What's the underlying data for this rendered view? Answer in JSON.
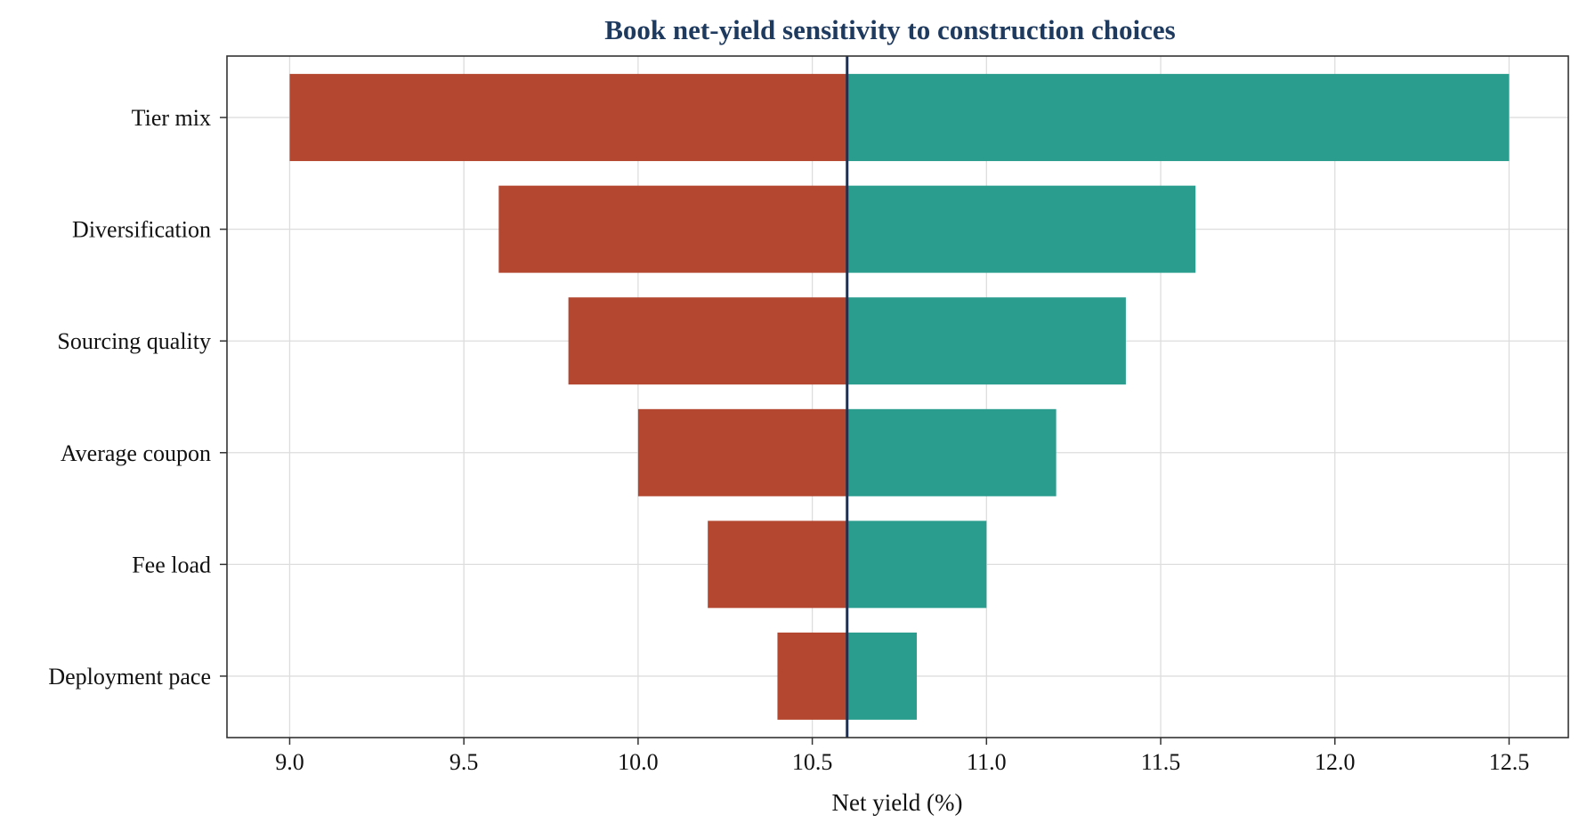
{
  "chart_data": {
    "type": "bar",
    "orientation": "horizontal",
    "title": "Book net-yield sensitivity to construction choices",
    "xlabel": "Net yield (%)",
    "ylabel": "",
    "xlim": [
      8.82,
      12.67
    ],
    "xticks": [
      9.0,
      9.5,
      10.0,
      10.5,
      11.0,
      11.5,
      12.0,
      12.5
    ],
    "xtick_labels": [
      "9.0",
      "9.5",
      "10.0",
      "10.5",
      "11.0",
      "11.5",
      "12.0",
      "12.5"
    ],
    "baseline": 10.6,
    "grid": true,
    "categories": [
      "Tier mix",
      "Diversification",
      "Sourcing quality",
      "Average coupon",
      "Fee load",
      "Deployment pace"
    ],
    "low": [
      9.0,
      9.6,
      9.8,
      10.0,
      10.2,
      10.4
    ],
    "high": [
      12.5,
      11.6,
      11.4,
      11.2,
      11.0,
      10.8
    ],
    "colors": {
      "low": "#b34730",
      "high": "#2a9d8f",
      "baseline": "#1f3050",
      "title": "#1f3a5f"
    }
  }
}
